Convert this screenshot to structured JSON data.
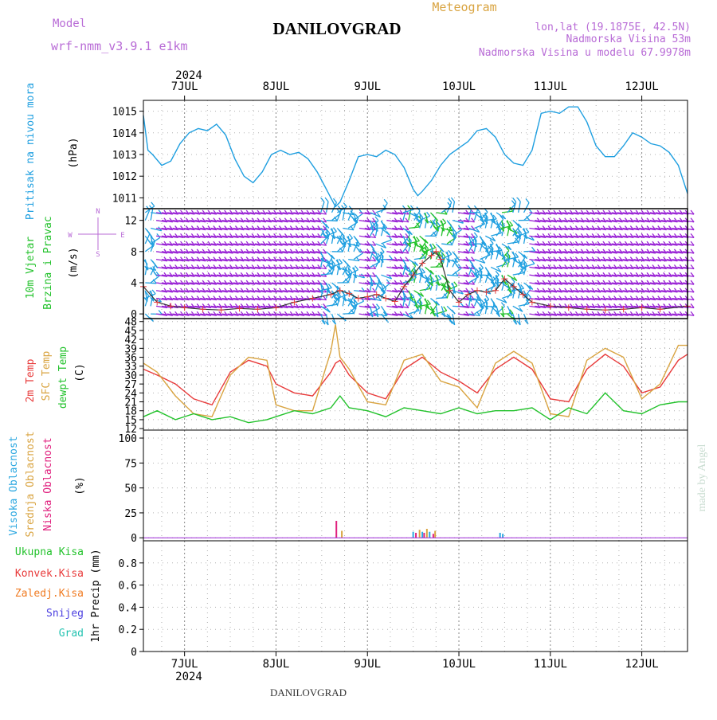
{
  "header": {
    "model_label": "Model",
    "model_name": "wrf-nmm_v3.9.1 e1km",
    "station": "DANILOVGRAD",
    "product": "Meteogram",
    "lonlat": "lon,lat (19.1875E, 42.5N)",
    "altitude": "Nadmorska Visina 53m",
    "model_altitude": "Nadmorska Visina u modelu 67.9978m"
  },
  "footer": {
    "station": "DANILOVGRAD",
    "watermark": "made by Angel"
  },
  "colors": {
    "pressure": "#1f9fe0",
    "wind_hi": "#9b26d6",
    "temp": "#e83b3b",
    "sfc_temp": "#d9a441",
    "dewpoint": "#22c22b",
    "high_cloud": "#2aa7e0",
    "mid_cloud": "#d9a441",
    "low_cloud": "#e0207e",
    "total_precip": "#22c22b",
    "conv_precip": "#e83b3b",
    "frozen_precip": "#f07b22",
    "snow": "#4b3fe0",
    "graupel": "#22c2b0",
    "label_purple": "#b86bd6"
  },
  "compass": {
    "n": "N",
    "s": "S",
    "e": "E",
    "w": "W"
  },
  "chart_data": {
    "type": "line",
    "year": "2024",
    "days": [
      "7JUL",
      "8JUL",
      "9JUL",
      "10JUL",
      "11JUL",
      "12JUL"
    ],
    "x_range_days": [
      6.55,
      12.5
    ],
    "panels": [
      {
        "id": "pressure",
        "ylabel": "(hPa)",
        "side_labels": [
          "Pritisak na nivou mora"
        ],
        "ylim": [
          1010.5,
          1015.5
        ],
        "yticks": [
          1011,
          1012,
          1013,
          1014,
          1015
        ],
        "series": [
          {
            "name": "Pritisak na nivou mora",
            "x": [
              6.55,
              6.6,
              6.65,
              6.75,
              6.85,
              6.95,
              7.05,
              7.15,
              7.25,
              7.35,
              7.45,
              7.55,
              7.65,
              7.75,
              7.85,
              7.95,
              8.05,
              8.15,
              8.25,
              8.35,
              8.45,
              8.55,
              8.6,
              8.65,
              8.7,
              8.8,
              8.9,
              9.0,
              9.1,
              9.2,
              9.3,
              9.4,
              9.5,
              9.55,
              9.6,
              9.7,
              9.8,
              9.9,
              10.0,
              10.1,
              10.2,
              10.3,
              10.4,
              10.5,
              10.6,
              10.7,
              10.8,
              10.9,
              11.0,
              11.1,
              11.2,
              11.3,
              11.4,
              11.5,
              11.6,
              11.7,
              11.8,
              11.9,
              12.0,
              12.1,
              12.2,
              12.3,
              12.4,
              12.5
            ],
            "y": [
              1014.8,
              1013.2,
              1013.0,
              1012.5,
              1012.7,
              1013.5,
              1014.0,
              1014.2,
              1014.1,
              1014.4,
              1013.9,
              1012.8,
              1012.0,
              1011.7,
              1012.2,
              1013.0,
              1013.2,
              1013.0,
              1013.1,
              1012.8,
              1012.2,
              1011.4,
              1011.0,
              1010.6,
              1010.8,
              1011.8,
              1012.9,
              1013.0,
              1012.9,
              1013.2,
              1013.0,
              1012.4,
              1011.4,
              1011.1,
              1011.3,
              1011.8,
              1012.5,
              1013.0,
              1013.3,
              1013.6,
              1014.1,
              1014.2,
              1013.8,
              1013.0,
              1012.6,
              1012.5,
              1013.2,
              1014.9,
              1015.0,
              1014.9,
              1015.2,
              1015.2,
              1014.5,
              1013.4,
              1012.9,
              1012.9,
              1013.4,
              1014.0,
              1013.8,
              1013.5,
              1013.4,
              1013.1,
              1012.5,
              1011.2
            ]
          }
        ]
      },
      {
        "id": "wind",
        "ylabel": "(m/s)",
        "side_labels": [
          "10m Vjetar",
          "Brzina i Pravac"
        ],
        "ylim": [
          -0.6,
          13.5
        ],
        "yticks": [
          0,
          4,
          8,
          12
        ],
        "series": [
          {
            "name": "10m Vjetar Brzina",
            "x": [
              6.55,
              6.7,
              6.85,
              7.0,
              7.2,
              7.4,
              7.6,
              7.8,
              8.0,
              8.2,
              8.4,
              8.6,
              8.7,
              8.8,
              8.9,
              9.0,
              9.1,
              9.2,
              9.3,
              9.4,
              9.5,
              9.6,
              9.7,
              9.75,
              9.8,
              9.9,
              10.0,
              10.1,
              10.2,
              10.3,
              10.4,
              10.5,
              10.6,
              10.7,
              10.8,
              11.0,
              11.2,
              11.4,
              11.6,
              11.8,
              12.0,
              12.2,
              12.5
            ],
            "y": [
              3.5,
              1.5,
              1.0,
              0.8,
              0.6,
              0.5,
              0.7,
              0.6,
              0.8,
              1.5,
              2.0,
              2.5,
              3.0,
              2.6,
              2.0,
              2.2,
              2.5,
              2.0,
              1.6,
              3.5,
              5.0,
              6.5,
              7.5,
              8.0,
              7.0,
              3.0,
              1.5,
              2.5,
              3.0,
              2.8,
              3.0,
              4.5,
              3.5,
              2.5,
              1.5,
              1.0,
              0.8,
              0.6,
              0.5,
              0.6,
              0.8,
              0.6,
              1.0
            ]
          }
        ]
      },
      {
        "id": "temperature",
        "ylabel": "(C)",
        "side_labels": [
          "2m Temp",
          "SFC Temp",
          "dewpt Temp"
        ],
        "ylim": [
          11.5,
          49
        ],
        "yticks": [
          12,
          15,
          18,
          21,
          24,
          27,
          30,
          33,
          36,
          39,
          42,
          45,
          48
        ],
        "series": [
          {
            "name": "2m Temp",
            "x": [
              6.55,
              6.7,
              6.9,
              7.1,
              7.3,
              7.5,
              7.7,
              7.9,
              8.0,
              8.2,
              8.4,
              8.6,
              8.65,
              8.7,
              8.8,
              9.0,
              9.2,
              9.4,
              9.6,
              9.8,
              10.0,
              10.2,
              10.4,
              10.6,
              10.8,
              11.0,
              11.2,
              11.4,
              11.6,
              11.8,
              12.0,
              12.2,
              12.4,
              12.5
            ],
            "y": [
              32,
              30,
              27,
              22,
              20,
              31,
              35,
              33,
              27,
              24,
              23,
              31,
              34,
              35,
              30,
              24,
              22,
              32,
              36,
              31,
              28,
              24,
              32,
              36,
              32,
              22,
              21,
              32,
              37,
              33,
              24,
              26,
              35,
              37
            ]
          },
          {
            "name": "SFC Temp",
            "x": [
              6.55,
              6.7,
              6.9,
              7.1,
              7.3,
              7.5,
              7.7,
              7.9,
              8.0,
              8.2,
              8.4,
              8.6,
              8.65,
              8.7,
              8.8,
              9.0,
              9.2,
              9.4,
              9.6,
              9.8,
              10.0,
              10.2,
              10.4,
              10.6,
              10.8,
              11.0,
              11.2,
              11.4,
              11.6,
              11.8,
              12.0,
              12.2,
              12.4,
              12.5
            ],
            "y": [
              34,
              31,
              23,
              17,
              16,
              30,
              36,
              35,
              20,
              18,
              18,
              38,
              47,
              36,
              32,
              21,
              20,
              35,
              37,
              28,
              26,
              19,
              34,
              38,
              34,
              17,
              16,
              35,
              39,
              36,
              22,
              27,
              40,
              40
            ]
          },
          {
            "name": "dewpt Temp",
            "x": [
              6.55,
              6.7,
              6.9,
              7.1,
              7.3,
              7.5,
              7.7,
              7.9,
              8.0,
              8.2,
              8.4,
              8.6,
              8.7,
              8.8,
              9.0,
              9.2,
              9.4,
              9.6,
              9.8,
              10.0,
              10.2,
              10.4,
              10.6,
              10.8,
              11.0,
              11.2,
              11.4,
              11.6,
              11.8,
              12.0,
              12.2,
              12.4,
              12.5
            ],
            "y": [
              16,
              18,
              15,
              17,
              15,
              16,
              14,
              15,
              16,
              18,
              17,
              19,
              23,
              19,
              18,
              16,
              19,
              18,
              17,
              19,
              17,
              18,
              18,
              19,
              15,
              19,
              17,
              24,
              18,
              17,
              20,
              21,
              21
            ]
          }
        ]
      },
      {
        "id": "clouds",
        "ylabel": "(%)",
        "side_labels": [
          "Visoka Oblacnost",
          "Srednja Oblacnost",
          "Niska Oblacnost"
        ],
        "ylim": [
          -3,
          108
        ],
        "yticks": [
          0,
          25,
          50,
          75,
          100
        ],
        "bars": [
          {
            "name": "Niska Oblacnost",
            "x": [
              8.66,
              9.53,
              9.62,
              9.72
            ],
            "y": [
              17,
              5,
              5,
              4
            ]
          },
          {
            "name": "Srednja Oblacnost",
            "x": [
              8.72,
              9.57,
              9.65,
              9.74
            ],
            "y": [
              7,
              8,
              9,
              7
            ]
          },
          {
            "name": "Visoka Oblacnost",
            "x": [
              9.5,
              9.6,
              9.68,
              10.45,
              10.48
            ],
            "y": [
              6,
              6,
              6,
              5,
              4
            ]
          }
        ]
      },
      {
        "id": "precip",
        "ylabel": "1hr Precip (mm)",
        "side_labels": [
          "Ukupna Kisa",
          "Konvek.Kisa",
          "Zaledj.Kisa",
          "Snijeg",
          "Grad"
        ],
        "ylim": [
          0,
          1.0
        ],
        "yticks": [
          0,
          0.2,
          0.4,
          0.6,
          0.8
        ],
        "series": []
      }
    ]
  }
}
